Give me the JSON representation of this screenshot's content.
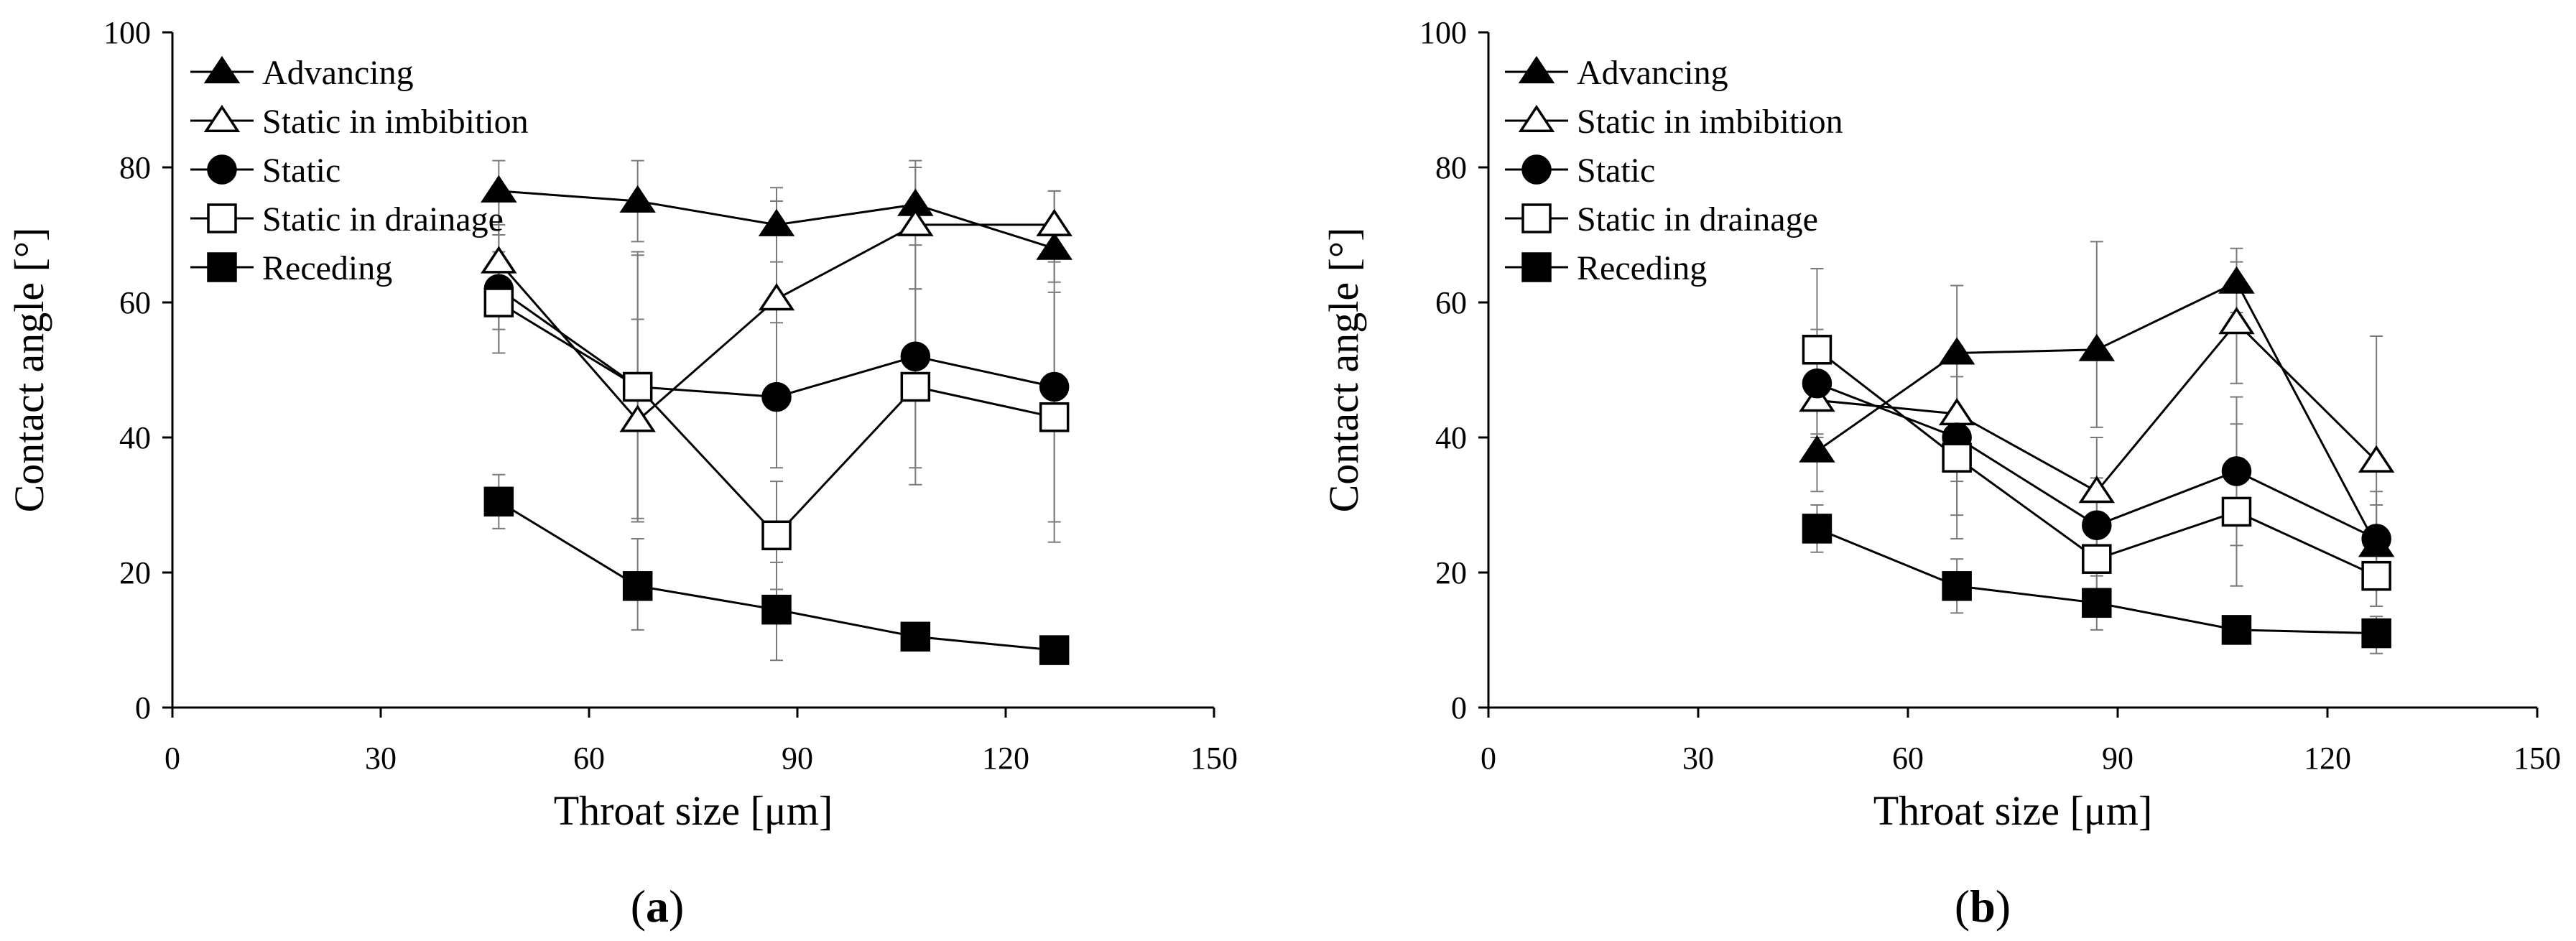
{
  "figure": {
    "captions": [
      {
        "open": "(",
        "letter": "a",
        "close": ")"
      },
      {
        "open": "(",
        "letter": "b",
        "close": ")"
      }
    ]
  },
  "chart_data": [
    {
      "id": "a",
      "type": "line",
      "title": "",
      "xlabel": "Throat size [μm]",
      "ylabel": "Contact angle [°]",
      "xlim": [
        0,
        150
      ],
      "ylim": [
        0,
        100
      ],
      "xticks": [
        0,
        30,
        60,
        90,
        120,
        150
      ],
      "yticks": [
        0,
        20,
        40,
        60,
        80,
        100
      ],
      "grid": false,
      "legend_position": "top-left",
      "x": [
        47,
        67,
        87,
        107,
        127
      ],
      "series": [
        {
          "name": "Advancing",
          "marker": "triangle",
          "filled": true,
          "values": [
            76.5,
            75,
            71.5,
            74.5,
            68
          ],
          "error_low": [
            70,
            69,
            66,
            70.5,
            63
          ],
          "error_high": [
            81,
            81,
            77,
            80,
            76.5
          ]
        },
        {
          "name": "Static in imbibition",
          "marker": "triangle",
          "filled": false,
          "values": [
            66,
            42.5,
            60.5,
            71.5,
            71.5
          ],
          "error_low": [
            56,
            27.5,
            46,
            62,
            66
          ],
          "error_high": [
            76.5,
            57.5,
            75,
            81,
            76.5
          ]
        },
        {
          "name": "Static",
          "marker": "circle",
          "filled": true,
          "values": [
            62,
            47.5,
            46,
            52,
            47.5
          ],
          "error_low": [
            52.5,
            28,
            35.5,
            35.5,
            27.5
          ],
          "error_high": [
            71.5,
            67,
            57,
            68.5,
            67.5
          ]
        },
        {
          "name": "Static in drainage",
          "marker": "square",
          "filled": false,
          "values": [
            60,
            47.5,
            25.5,
            47.5,
            43
          ],
          "error_low": [
            52.5,
            27.5,
            17.5,
            33,
            24.5
          ],
          "error_high": [
            67.5,
            67.5,
            33.5,
            62,
            61.5
          ]
        },
        {
          "name": "Receding",
          "marker": "square",
          "filled": true,
          "values": [
            30.5,
            18,
            14.5,
            10.5,
            8.5
          ],
          "error_low": [
            26.5,
            11.5,
            7,
            9,
            7.5
          ],
          "error_high": [
            34.5,
            25,
            21.5,
            12.5,
            10
          ]
        }
      ]
    },
    {
      "id": "b",
      "type": "line",
      "title": "",
      "xlabel": "Throat size [μm]",
      "ylabel": "Contact angle [°]",
      "xlim": [
        0,
        150
      ],
      "ylim": [
        0,
        100
      ],
      "xticks": [
        0,
        30,
        60,
        90,
        120,
        150
      ],
      "yticks": [
        0,
        20,
        40,
        60,
        80,
        100
      ],
      "grid": false,
      "legend_position": "top-left",
      "x": [
        47,
        67,
        87,
        107,
        127
      ],
      "series": [
        {
          "name": "Advancing",
          "marker": "triangle",
          "filled": true,
          "values": [
            38,
            52.5,
            53,
            63,
            24
          ],
          "error_low": [
            32,
            43.5,
            41.5,
            58.5,
            15
          ],
          "error_high": [
            44,
            62.5,
            69,
            68,
            32
          ]
        },
        {
          "name": "Static in imbibition",
          "marker": "triangle",
          "filled": false,
          "values": [
            45.5,
            43.5,
            32,
            57,
            36.5
          ],
          "error_low": [
            36.5,
            33.5,
            24,
            48,
            20
          ],
          "error_high": [
            54.5,
            53.5,
            40,
            66,
            55
          ]
        },
        {
          "name": "Static",
          "marker": "circle",
          "filled": true,
          "values": [
            48,
            40,
            27,
            35,
            25
          ],
          "error_low": [
            40,
            28.5,
            20,
            24,
            21
          ],
          "error_high": [
            56,
            51.5,
            34,
            46,
            30
          ]
        },
        {
          "name": "Static in drainage",
          "marker": "square",
          "filled": false,
          "values": [
            53,
            37,
            22,
            29,
            19.5
          ],
          "error_low": [
            40.5,
            25,
            16,
            18,
            15
          ],
          "error_high": [
            65,
            49,
            28.5,
            42,
            24
          ]
        },
        {
          "name": "Receding",
          "marker": "square",
          "filled": true,
          "values": [
            26.5,
            18,
            15.5,
            11.5,
            11
          ],
          "error_low": [
            23,
            14,
            11.5,
            10,
            8
          ],
          "error_high": [
            30,
            22,
            19.5,
            13.5,
            13.5
          ]
        }
      ]
    }
  ]
}
